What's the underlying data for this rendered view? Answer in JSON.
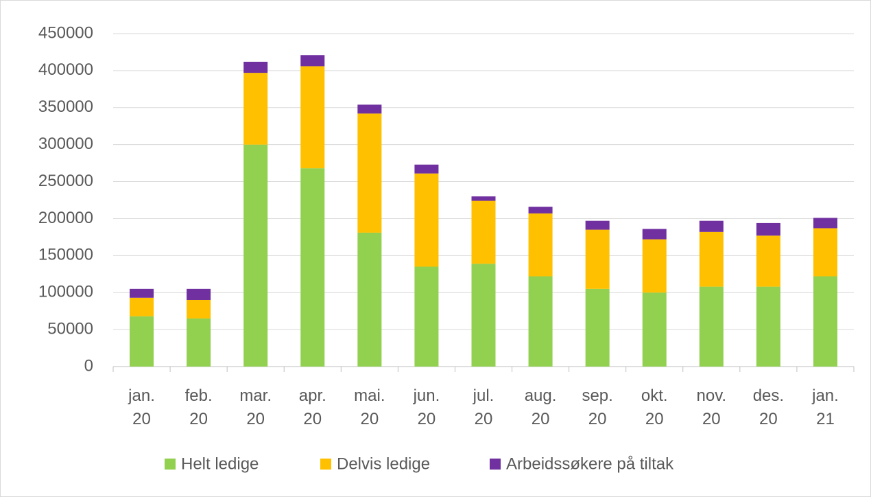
{
  "chart_data": {
    "type": "stacked_bar",
    "categories": [
      "jan. 20",
      "feb. 20",
      "mar. 20",
      "apr. 20",
      "mai. 20",
      "jun. 20",
      "jul. 20",
      "aug. 20",
      "sep. 20",
      "okt. 20",
      "nov. 20",
      "des. 20",
      "jan. 21"
    ],
    "series": [
      {
        "name": "Helt ledige",
        "color": "#92d050",
        "values": [
          68000,
          65000,
          300000,
          268000,
          181000,
          135000,
          139000,
          122000,
          105000,
          100000,
          108000,
          108000,
          122000
        ]
      },
      {
        "name": "Delvis ledige",
        "color": "#ffc000",
        "values": [
          25000,
          25000,
          97000,
          138000,
          161000,
          126000,
          85000,
          85000,
          80000,
          72000,
          74000,
          69000,
          65000
        ]
      },
      {
        "name": "Arbeidssøkere på tiltak",
        "color": "#7030a0",
        "values": [
          12000,
          15000,
          15000,
          15000,
          12000,
          12000,
          6000,
          9000,
          12000,
          14000,
          15000,
          17000,
          14000
        ]
      }
    ],
    "ylim": [
      0,
      450000
    ],
    "yticks": [
      0,
      50000,
      100000,
      150000,
      200000,
      250000,
      300000,
      350000,
      400000,
      450000
    ],
    "grid": true,
    "legend": "bottom"
  }
}
